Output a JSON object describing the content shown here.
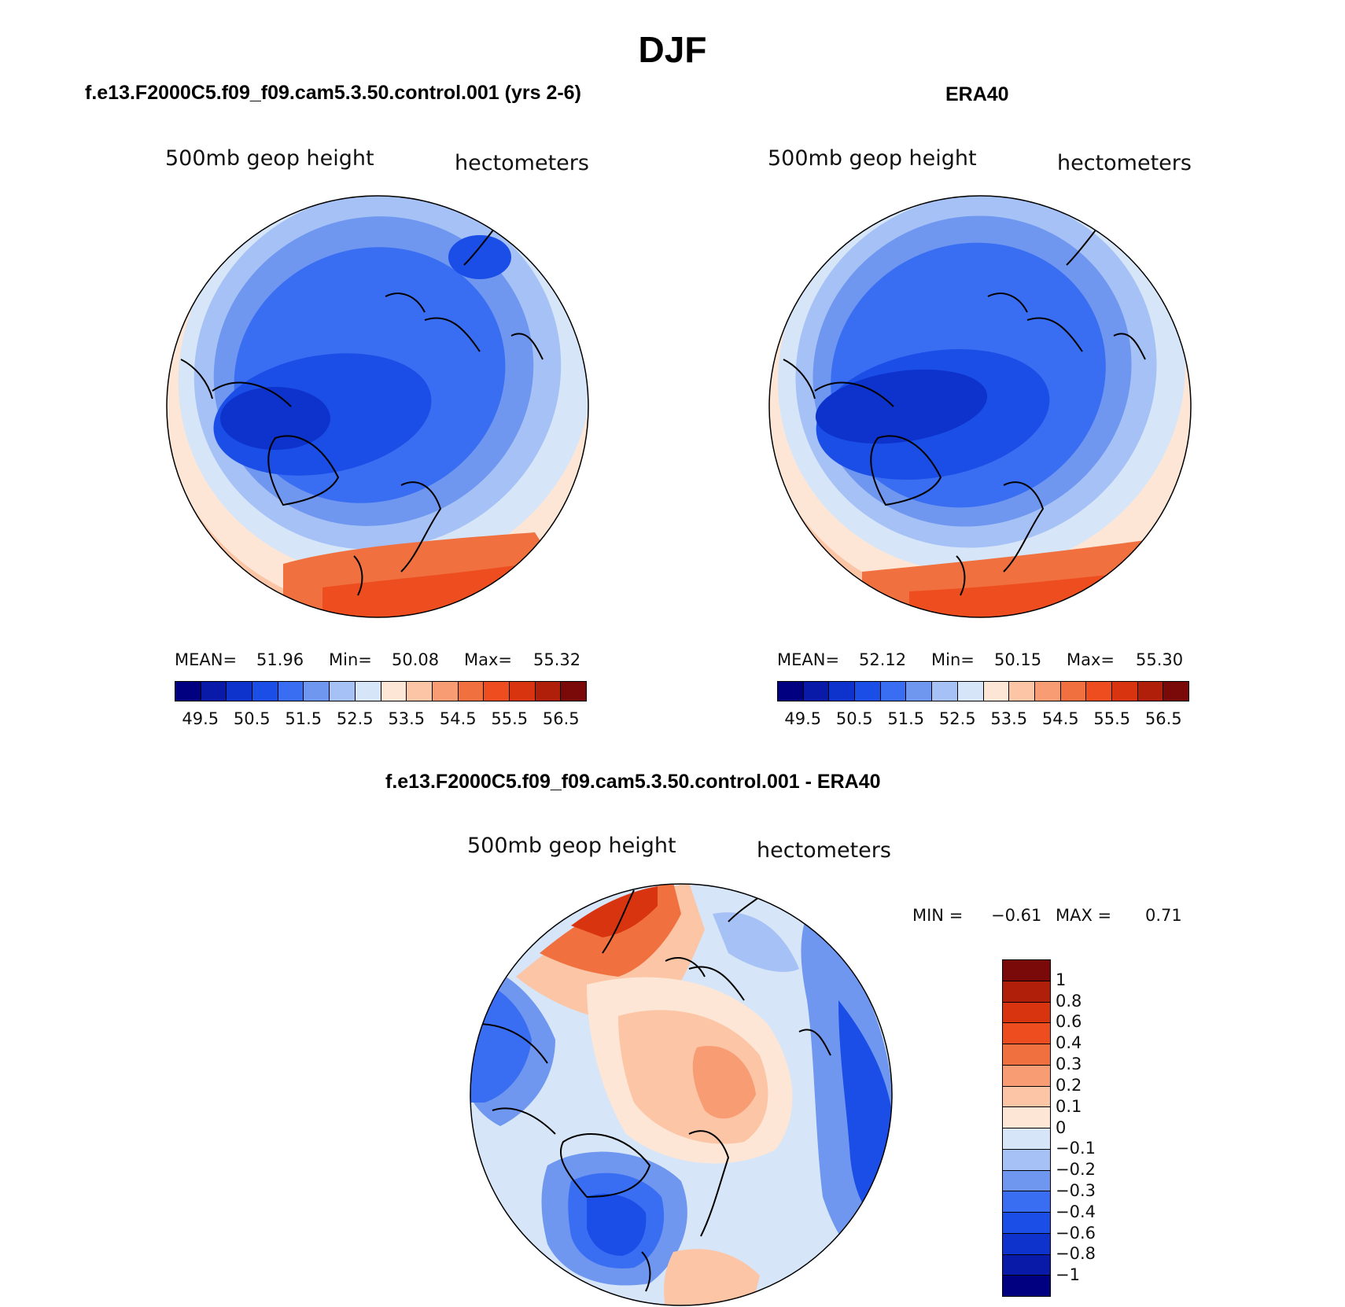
{
  "main_title": "DJF",
  "panels": [
    {
      "title": "f.e13.F2000C5.f09_f09.cam5.3.50.control.001 (yrs 2-6)",
      "var_label": "500mb geop height",
      "units_label": "hectometers",
      "stats": {
        "mean_label": "MEAN=",
        "mean": "51.96",
        "min_label": "Min=",
        "min": "50.08",
        "max_label": "Max=",
        "max": "55.32"
      }
    },
    {
      "title": "ERA40",
      "var_label": "500mb geop height",
      "units_label": "hectometers",
      "stats": {
        "mean_label": "MEAN=",
        "mean": "52.12",
        "min_label": "Min=",
        "min": "50.15",
        "max_label": "Max=",
        "max": "55.30"
      }
    },
    {
      "title": "f.e13.F2000C5.f09_f09.cam5.3.50.control.001 - ERA40",
      "var_label": "500mb geop height",
      "units_label": "hectometers",
      "stats": {
        "min_label": "MIN =",
        "min": "−0.61",
        "max_label": "MAX =",
        "max": "0.71"
      }
    }
  ],
  "colorbar_abs": {
    "colors": [
      "#000080",
      "#0a1aa8",
      "#0d33cc",
      "#1a4ee6",
      "#3a6ef2",
      "#6f97f0",
      "#a6c1f5",
      "#d6e6f8",
      "#fde6d6",
      "#fbc5a6",
      "#f89c73",
      "#f0703f",
      "#ee4e1f",
      "#d93410",
      "#b01f0a",
      "#7a0a0a"
    ],
    "ticks": [
      "49.5",
      "50.5",
      "51.5",
      "52.5",
      "53.5",
      "54.5",
      "55.5",
      "56.5"
    ]
  },
  "colorbar_diff": {
    "colors": [
      "#7a0a0a",
      "#b01f0a",
      "#d93410",
      "#ee4e1f",
      "#f0703f",
      "#f89c73",
      "#fbc5a6",
      "#fde6d6",
      "#d6e6f8",
      "#a6c1f5",
      "#6f97f0",
      "#3a6ef2",
      "#1a4ee6",
      "#0d33cc",
      "#0a1aa8",
      "#000080"
    ],
    "ticks": [
      "1",
      "0.8",
      "0.6",
      "0.4",
      "0.3",
      "0.2",
      "0.1",
      "0",
      "−0.1",
      "−0.2",
      "−0.3",
      "−0.4",
      "−0.6",
      "−0.8",
      "−1"
    ]
  }
}
